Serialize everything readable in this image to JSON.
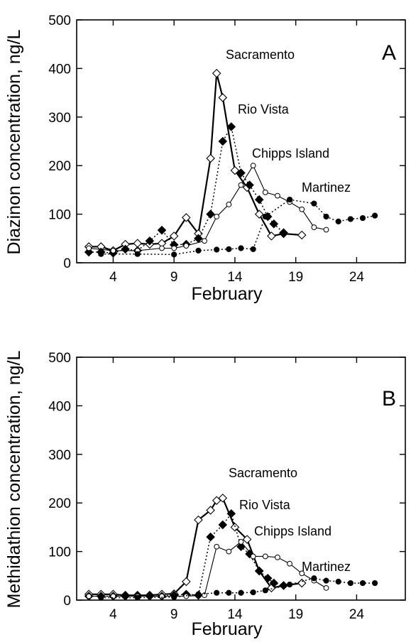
{
  "chart_data": [
    {
      "type": "line",
      "panel_label": "A",
      "xlabel": "February",
      "ylabel": "Diazinon concentration, ng/L",
      "xlim": [
        1,
        28
      ],
      "ylim": [
        0,
        500
      ],
      "xticks": [
        4,
        9,
        14,
        19,
        24
      ],
      "yticks": [
        0,
        100,
        200,
        300,
        400,
        500
      ],
      "grid": false,
      "legend": "inline labels",
      "series": [
        {
          "name": "Sacramento",
          "marker": "open-diamond",
          "line": "solid-bold",
          "x": [
            2,
            3,
            4,
            5,
            6,
            7,
            8,
            9,
            10,
            11,
            12,
            12.5,
            13,
            14,
            15,
            16,
            17,
            18,
            19.5
          ],
          "y": [
            33,
            33,
            25,
            38,
            40,
            38,
            40,
            55,
            93,
            60,
            215,
            390,
            340,
            190,
            155,
            100,
            55,
            60,
            57
          ]
        },
        {
          "name": "Rio Vista",
          "marker": "filled-diamond",
          "line": "dotted",
          "x": [
            2,
            3,
            4,
            5,
            6,
            7,
            8,
            9,
            10,
            11,
            12,
            13,
            13.7,
            14.5,
            15.2,
            16,
            16.7,
            17.2,
            18
          ],
          "y": [
            22,
            22,
            20,
            28,
            25,
            45,
            67,
            37,
            38,
            50,
            100,
            250,
            280,
            185,
            160,
            130,
            95,
            80,
            62
          ]
        },
        {
          "name": "Chipps Island",
          "marker": "open-circle",
          "line": "solid",
          "x": [
            2,
            4,
            6,
            8,
            9,
            10,
            11.5,
            12.5,
            13.5,
            14.5,
            15.5,
            16.5,
            17.5,
            18.5,
            19.5,
            20.5,
            21.5
          ],
          "y": [
            30,
            25,
            25,
            30,
            30,
            35,
            45,
            95,
            120,
            160,
            200,
            145,
            138,
            125,
            110,
            73,
            68
          ]
        },
        {
          "name": "Martinez",
          "marker": "filled-circle",
          "line": "dotted",
          "x": [
            3,
            6,
            9,
            11,
            12.5,
            13.5,
            14.5,
            15.5,
            16.5,
            18.5,
            20.5,
            21.5,
            22.5,
            23.5,
            24.5,
            25.5
          ],
          "y": [
            18,
            18,
            17,
            25,
            27,
            28,
            30,
            28,
            95,
            130,
            122,
            95,
            85,
            90,
            92,
            97
          ]
        }
      ]
    },
    {
      "type": "line",
      "panel_label": "B",
      "xlabel": "February",
      "ylabel": "Methidathion concentration, ng/L",
      "xlim": [
        1,
        28
      ],
      "ylim": [
        0,
        500
      ],
      "xticks": [
        4,
        9,
        14,
        19,
        24
      ],
      "yticks": [
        0,
        100,
        200,
        300,
        400,
        500
      ],
      "grid": false,
      "legend": "inline labels",
      "series": [
        {
          "name": "Sacramento",
          "marker": "open-diamond",
          "line": "solid-bold",
          "x": [
            2,
            3,
            4,
            5,
            6,
            7,
            8,
            9,
            10,
            11,
            12,
            12.5,
            13,
            14,
            15,
            16,
            17,
            18,
            19.5
          ],
          "y": [
            12,
            12,
            12,
            10,
            10,
            10,
            12,
            13,
            38,
            165,
            185,
            205,
            210,
            150,
            125,
            60,
            25,
            30,
            35
          ]
        },
        {
          "name": "Rio Vista",
          "marker": "filled-diamond",
          "line": "dotted",
          "x": [
            2,
            3,
            4,
            5,
            6,
            7,
            8,
            9,
            10,
            11,
            12,
            13,
            13.7,
            14.5,
            15.2,
            16,
            16.7,
            17.2,
            18
          ],
          "y": [
            8,
            8,
            8,
            8,
            8,
            8,
            8,
            10,
            12,
            10,
            130,
            155,
            178,
            110,
            95,
            60,
            45,
            35,
            30
          ]
        },
        {
          "name": "Chipps Island",
          "marker": "open-circle",
          "line": "solid",
          "x": [
            2,
            4,
            6,
            8,
            9,
            10,
            11.5,
            12.5,
            13.5,
            14.5,
            15.5,
            16.5,
            17.5,
            18.5,
            19.5,
            20.5,
            21.5
          ],
          "y": [
            8,
            8,
            8,
            8,
            8,
            8,
            10,
            110,
            100,
            120,
            90,
            90,
            88,
            75,
            55,
            40,
            25
          ]
        },
        {
          "name": "Martinez",
          "marker": "filled-circle",
          "line": "dotted",
          "x": [
            3,
            6,
            9,
            11,
            12.5,
            13.5,
            14.5,
            15.5,
            16.5,
            18.5,
            20.5,
            21.5,
            22.5,
            23.5,
            24.5,
            25.5
          ],
          "y": [
            5,
            5,
            6,
            12,
            15,
            15,
            15,
            16,
            20,
            32,
            45,
            40,
            38,
            35,
            35,
            35
          ]
        }
      ]
    }
  ]
}
